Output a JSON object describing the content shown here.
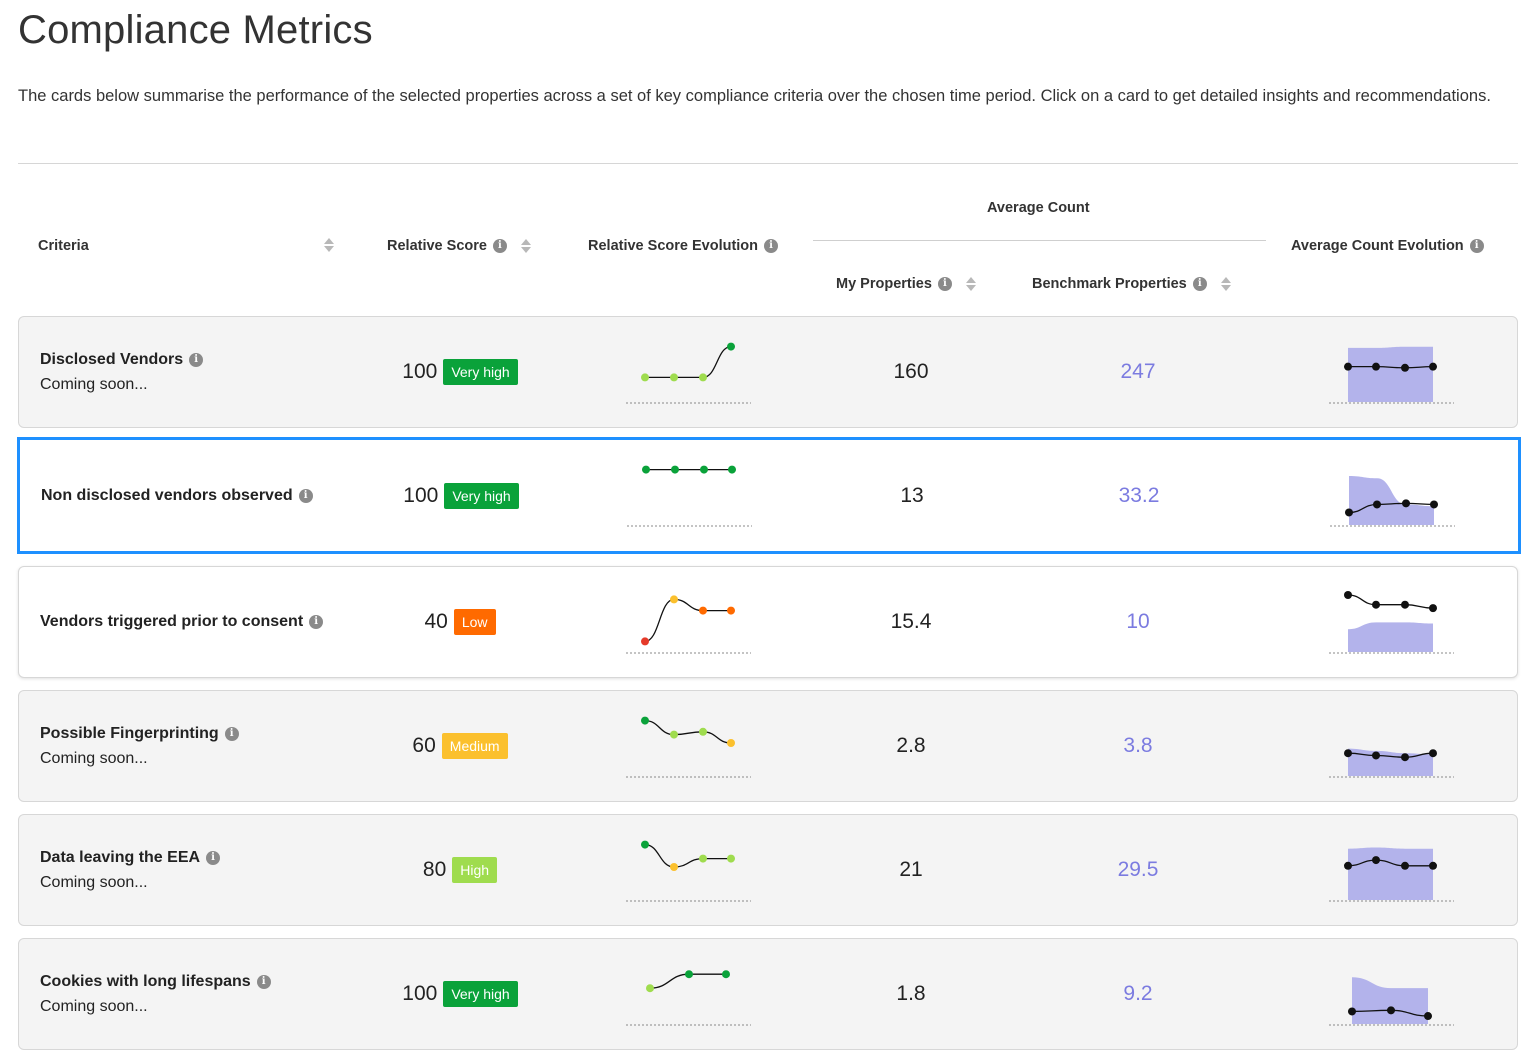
{
  "page": {
    "title": "Compliance Metrics",
    "intro": "The cards below summarise the performance of the selected properties across a set of key compliance criteria over the chosen time period. Click on a card to get detailed insights and recommendations."
  },
  "table": {
    "headers": {
      "criteria": "Criteria",
      "relative_score": "Relative Score",
      "relative_score_evolution": "Relative Score Evolution",
      "average_count": "Average Count",
      "my_properties": "My Properties",
      "benchmark_properties": "Benchmark Properties",
      "average_count_evolution": "Average Count Evolution"
    },
    "info_glyph": "i",
    "icons": [
      "info-icon",
      "sort-icon"
    ],
    "badge_colors": {
      "Very high": "#0aa23a",
      "High": "#9fdc4e",
      "Medium": "#fbc02d",
      "Low": "#ff6a00"
    },
    "point_colors": {
      "very_high": "#0aa23a",
      "high": "#9fdc4e",
      "medium": "#fbc02d",
      "low": "#ff6a00",
      "very_low": "#e53a2a"
    },
    "area_fill": "#b3b3eb",
    "rows": [
      {
        "criteria": "Disclosed Vendors",
        "subtitle": "Coming soon...",
        "score": "100",
        "rating": "Very high",
        "score_evolution": [
          {
            "v": 0.35,
            "c": "high"
          },
          {
            "v": 0.35,
            "c": "high"
          },
          {
            "v": 0.35,
            "c": "high"
          },
          {
            "v": 0.9,
            "c": "very_high"
          }
        ],
        "my_properties": "160",
        "benchmark": "247",
        "count_evolution": {
          "benchmark": [
            0.95,
            0.95,
            0.97,
            0.97
          ],
          "mine": [
            0.62,
            0.62,
            0.6,
            0.62
          ]
        }
      },
      {
        "criteria": "Non disclosed vendors observed",
        "subtitle": "",
        "score": "100",
        "rating": "Very high",
        "score_evolution": [
          {
            "v": 0.9,
            "c": "very_high"
          },
          {
            "v": 0.9,
            "c": "very_high"
          },
          {
            "v": 0.9,
            "c": "very_high"
          },
          {
            "v": 0.9,
            "c": "very_high"
          }
        ],
        "my_properties": "13",
        "benchmark": "33.2",
        "count_evolution": {
          "benchmark": [
            0.86,
            0.82,
            0.36,
            0.33
          ],
          "mine": [
            0.22,
            0.36,
            0.38,
            0.36
          ]
        }
      },
      {
        "criteria": "Vendors triggered prior to consent",
        "subtitle": "",
        "score": "40",
        "rating": "Low",
        "score_evolution": [
          {
            "v": 0.1,
            "c": "very_low"
          },
          {
            "v": 0.85,
            "c": "medium"
          },
          {
            "v": 0.65,
            "c": "low"
          },
          {
            "v": 0.65,
            "c": "low"
          }
        ],
        "my_properties": "15.4",
        "benchmark": "10",
        "count_evolution": {
          "benchmark": [
            0.4,
            0.52,
            0.52,
            0.5
          ],
          "mine": [
            1.0,
            0.83,
            0.83,
            0.77
          ]
        }
      },
      {
        "criteria": "Possible Fingerprinting",
        "subtitle": "Coming soon...",
        "score": "60",
        "rating": "Medium",
        "score_evolution": [
          {
            "v": 0.9,
            "c": "very_high"
          },
          {
            "v": 0.65,
            "c": "high"
          },
          {
            "v": 0.7,
            "c": "high"
          },
          {
            "v": 0.5,
            "c": "medium"
          }
        ],
        "my_properties": "2.8",
        "benchmark": "3.8",
        "count_evolution": {
          "benchmark": [
            0.48,
            0.44,
            0.4,
            0.38
          ],
          "mine": [
            0.4,
            0.36,
            0.33,
            0.4
          ]
        }
      },
      {
        "criteria": "Data leaving the EEA",
        "subtitle": "Coming soon...",
        "score": "80",
        "rating": "High",
        "score_evolution": [
          {
            "v": 0.9,
            "c": "very_high"
          },
          {
            "v": 0.5,
            "c": "medium"
          },
          {
            "v": 0.65,
            "c": "high"
          },
          {
            "v": 0.65,
            "c": "high"
          }
        ],
        "my_properties": "21",
        "benchmark": "29.5",
        "count_evolution": {
          "benchmark": [
            0.9,
            0.92,
            0.9,
            0.9
          ],
          "mine": [
            0.6,
            0.7,
            0.6,
            0.6
          ]
        }
      },
      {
        "criteria": "Cookies with long lifespans",
        "subtitle": "Coming soon...",
        "score": "100",
        "rating": "Very high",
        "score_evolution": [
          {
            "v": 0.55,
            "c": "high"
          },
          {
            "v": 0.8,
            "c": "very_high"
          },
          {
            "v": 0.8,
            "c": "very_high"
          }
        ],
        "my_properties": "1.8",
        "benchmark": "9.2",
        "count_evolution": {
          "benchmark": [
            0.82,
            0.63,
            0.63
          ],
          "mine": [
            0.22,
            0.24,
            0.14
          ]
        }
      }
    ]
  }
}
